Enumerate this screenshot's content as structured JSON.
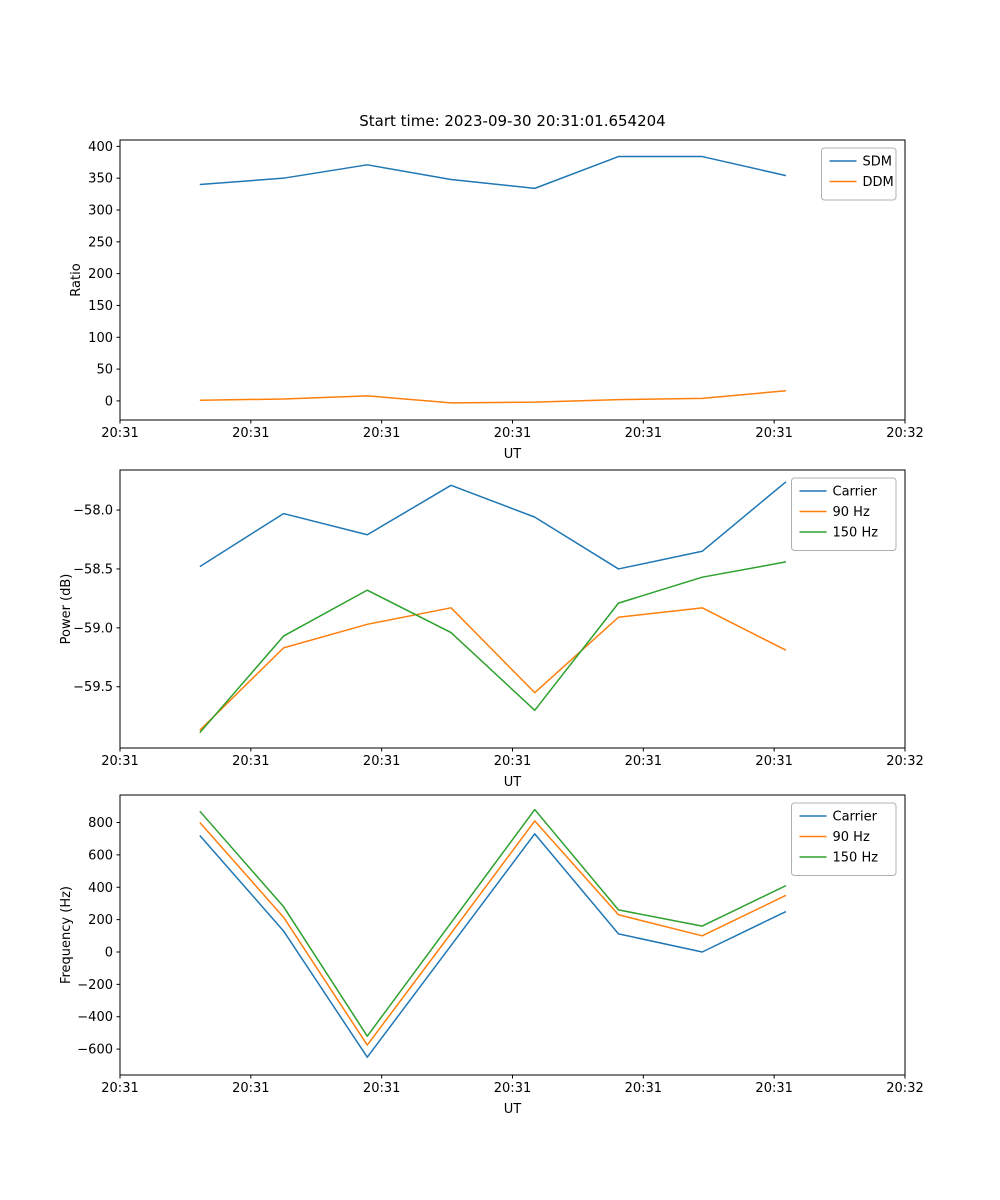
{
  "figure_title": "Start time: 2023-09-30 20:31:01.654204",
  "chart_data": [
    {
      "type": "line",
      "title": "Start time: 2023-09-30 20:31:01.654204",
      "xlabel": "UT",
      "ylabel": "Ratio",
      "xlim": [
        0,
        60
      ],
      "xticks": [
        0,
        10,
        20,
        30,
        40,
        50,
        60
      ],
      "xtick_labels": [
        "20:31",
        "20:31",
        "20:31",
        "20:31",
        "20:31",
        "20:31",
        "20:32"
      ],
      "ylim": [
        -30,
        410
      ],
      "yticks": [
        0,
        50,
        100,
        150,
        200,
        250,
        300,
        350,
        400
      ],
      "ytick_labels": [
        "0",
        "50",
        "100",
        "150",
        "200",
        "250",
        "300",
        "350",
        "400"
      ],
      "x": [
        6.1,
        12.5,
        18.9,
        25.3,
        31.7,
        38.1,
        44.5,
        50.9
      ],
      "grid": false,
      "legend_position": "upper right",
      "series": [
        {
          "name": "SDM",
          "color": "#1f77b4",
          "values": [
            340,
            350,
            371,
            348,
            334,
            384,
            384,
            354
          ]
        },
        {
          "name": "DDM",
          "color": "#ff7f0e",
          "values": [
            1,
            3,
            8,
            -3,
            -2,
            2,
            4,
            16
          ]
        }
      ]
    },
    {
      "type": "line",
      "title": "",
      "xlabel": "UT",
      "ylabel": "Power (dB)",
      "xlim": [
        0,
        60
      ],
      "xticks": [
        0,
        10,
        20,
        30,
        40,
        50,
        60
      ],
      "xtick_labels": [
        "20:31",
        "20:31",
        "20:31",
        "20:31",
        "20:31",
        "20:31",
        "20:32"
      ],
      "ylim": [
        -60.02,
        -57.66
      ],
      "yticks": [
        -58.0,
        -58.5,
        -59.0,
        -59.5
      ],
      "ytick_labels": [
        "−58.0",
        "−58.5",
        "−59.0",
        "−59.5"
      ],
      "x": [
        6.1,
        12.5,
        18.9,
        25.3,
        31.7,
        38.1,
        44.5,
        50.9
      ],
      "grid": false,
      "legend_position": "upper right",
      "series": [
        {
          "name": "Carrier",
          "color": "#1f77b4",
          "values": [
            -58.48,
            -58.03,
            -58.21,
            -57.79,
            -58.06,
            -58.5,
            -58.35,
            -57.76
          ]
        },
        {
          "name": "90 Hz",
          "color": "#ff7f0e",
          "values": [
            -59.87,
            -59.17,
            -58.97,
            -58.83,
            -59.55,
            -58.91,
            -58.83,
            -59.19
          ]
        },
        {
          "name": "150 Hz",
          "color": "#2ca02c",
          "values": [
            -59.89,
            -59.07,
            -58.68,
            -59.04,
            -59.7,
            -58.79,
            -58.57,
            -58.44
          ]
        }
      ]
    },
    {
      "type": "line",
      "title": "",
      "xlabel": "UT",
      "ylabel": "Frequency (Hz)",
      "xlim": [
        0,
        60
      ],
      "xticks": [
        0,
        10,
        20,
        30,
        40,
        50,
        60
      ],
      "xtick_labels": [
        "20:31",
        "20:31",
        "20:31",
        "20:31",
        "20:31",
        "20:31",
        "20:32"
      ],
      "ylim": [
        -760,
        970
      ],
      "yticks": [
        -600,
        -400,
        -200,
        0,
        200,
        400,
        600,
        800
      ],
      "ytick_labels": [
        "−600",
        "−400",
        "−200",
        "0",
        "200",
        "400",
        "600",
        "800"
      ],
      "x": [
        6.1,
        12.5,
        18.9,
        25.3,
        31.7,
        38.1,
        44.5,
        50.9
      ],
      "grid": false,
      "legend_position": "upper right",
      "series": [
        {
          "name": "Carrier",
          "color": "#1f77b4",
          "values": [
            720,
            130,
            -650,
            40,
            730,
            112,
            0,
            250
          ]
        },
        {
          "name": "90 Hz",
          "color": "#ff7f0e",
          "values": [
            800,
            215,
            -575,
            115,
            810,
            230,
            100,
            350
          ]
        },
        {
          "name": "150 Hz",
          "color": "#2ca02c",
          "values": [
            870,
            280,
            -520,
            180,
            880,
            260,
            160,
            410
          ]
        }
      ]
    }
  ]
}
